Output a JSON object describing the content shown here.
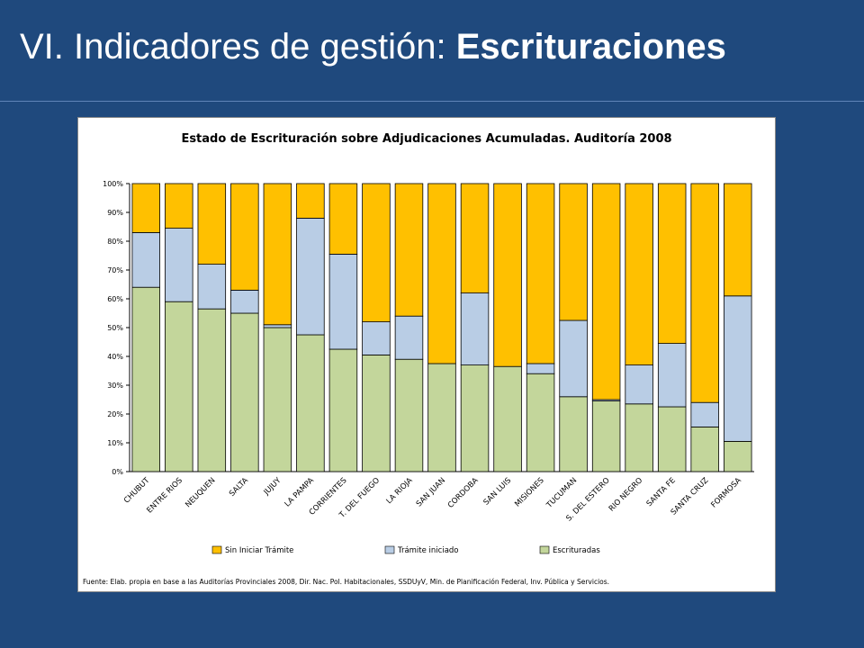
{
  "slide": {
    "title_prefix": "VI. Indicadores de gestión: ",
    "title_bold": "Escrituraciones"
  },
  "colors": {
    "background": "#1F497D",
    "sin_iniciar": "#FFC000",
    "tramite_iniciado": "#B9CDE5",
    "escrituradas": "#C3D69B"
  },
  "chart_data": {
    "type": "bar",
    "stacked": true,
    "percent_stacked": true,
    "title": "Estado de Escrituración sobre Adjudicaciones Acumuladas. Auditoría 2008",
    "source": "Fuente: Elab. propia en base a las Auditorías Provinciales 2008, Dir. Nac. Pol. Habitacionales, SSDUyV, Min. de Planificación Federal, Inv. Pública y Servicios.",
    "ylim": [
      0,
      100
    ],
    "yticks": [
      "0%",
      "10%",
      "20%",
      "30%",
      "40%",
      "50%",
      "60%",
      "70%",
      "80%",
      "90%",
      "100%"
    ],
    "grid": false,
    "legend_position": "bottom",
    "categories": [
      "CHUBUT",
      "ENTRE RIOS",
      "NEUQUEN",
      "SALTA",
      "JUJUY",
      "LA PAMPA",
      "CORRIENTES",
      "T. DEL FUEGO",
      "LA RIOJA",
      "SAN JUAN",
      "CORDOBA",
      "SAN LUIS",
      "MISIONES",
      "TUCUMAN",
      "S. DEL ESTERO",
      "RIO NEGRO",
      "SANTA FE",
      "SANTA CRUZ",
      "FORMOSA"
    ],
    "series": [
      {
        "name": "Escrituradas",
        "color": "#C3D69B",
        "values": [
          64,
          59,
          56.5,
          55,
          50,
          47.5,
          42.5,
          40.5,
          39,
          37.5,
          37,
          36.5,
          34,
          26,
          24.5,
          23.5,
          22.5,
          15.5,
          10.5
        ]
      },
      {
        "name": "Trámite iniciado",
        "color": "#B9CDE5",
        "values": [
          19,
          25.5,
          15.5,
          8,
          1,
          40.5,
          33,
          11.5,
          15,
          0,
          25,
          0,
          3.5,
          26.5,
          0.5,
          13.5,
          22,
          8.5,
          50.5
        ]
      },
      {
        "name": "Sin Iniciar Trámite",
        "color": "#FFC000",
        "values": [
          17,
          15.5,
          28,
          37,
          49,
          12,
          24.5,
          48,
          46,
          62.5,
          38,
          63.5,
          62.5,
          47.5,
          75,
          63,
          55.5,
          76,
          39
        ]
      }
    ],
    "legend_order": [
      "Sin Iniciar Trámite",
      "Trámite iniciado",
      "Escrituradas"
    ]
  }
}
